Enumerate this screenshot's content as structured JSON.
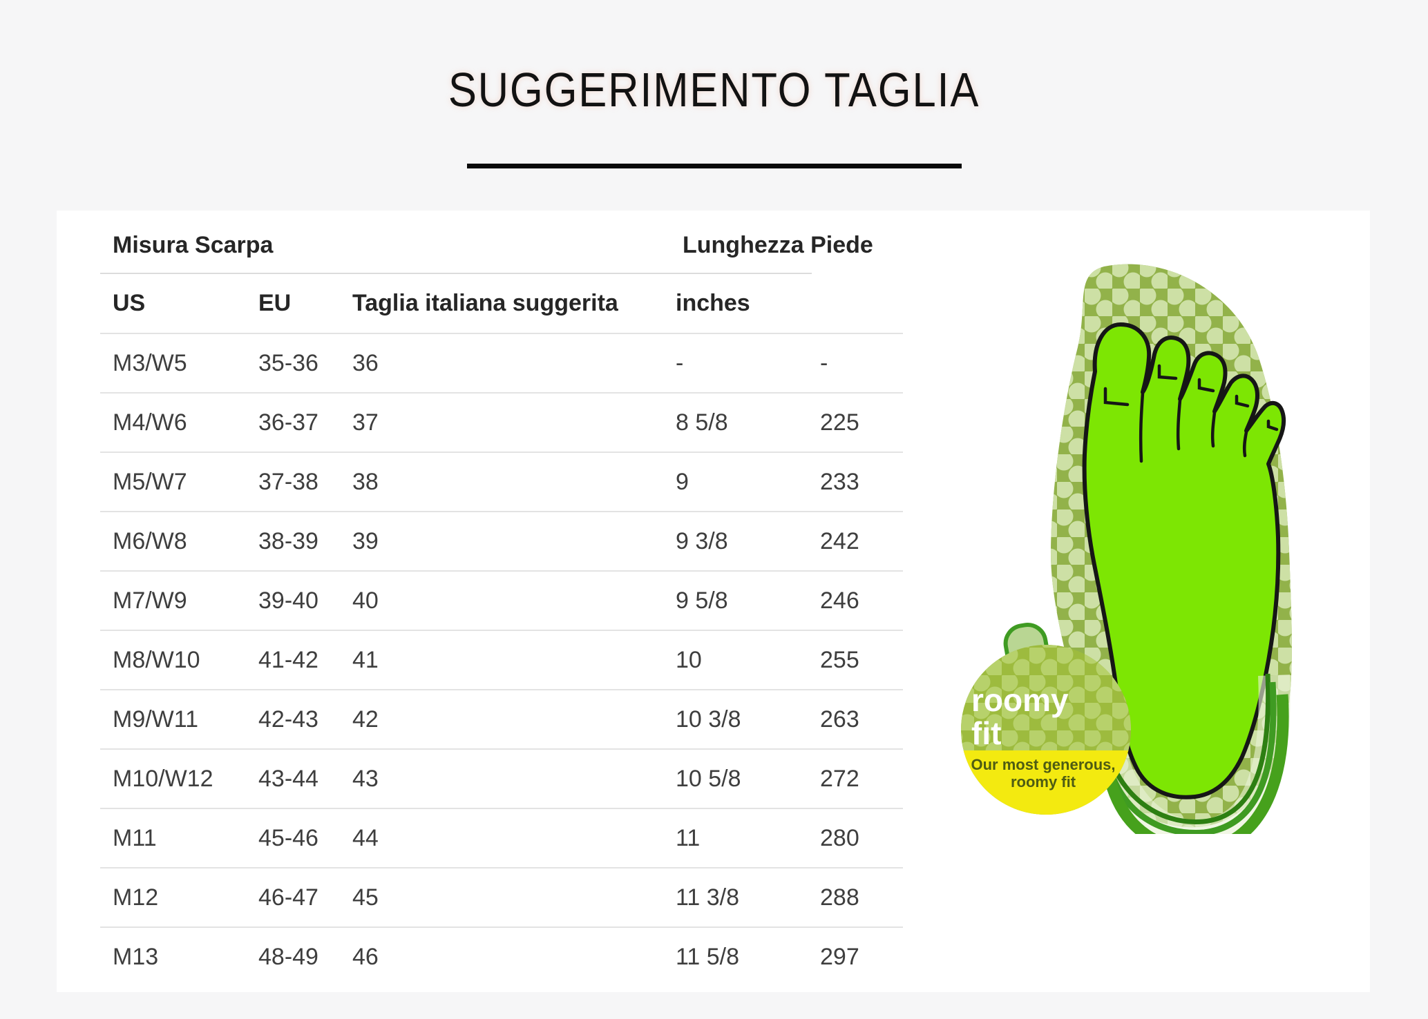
{
  "title": "SUGGERIMENTO TAGLIA",
  "table": {
    "group_headers": [
      "Misura Scarpa",
      "Lunghezza Piede"
    ],
    "columns": [
      "US",
      "EU",
      "Taglia italiana suggerita",
      "inches",
      ""
    ],
    "rows": [
      [
        "M3/W5",
        "35-36",
        "36",
        "-",
        "-"
      ],
      [
        "M4/W6",
        "36-37",
        "37",
        "8 5/8",
        "225"
      ],
      [
        "M5/W7",
        "37-38",
        "38",
        "9",
        "233"
      ],
      [
        "M6/W8",
        "38-39",
        "39",
        "9 3/8",
        "242"
      ],
      [
        "M7/W9",
        "39-40",
        "40",
        "9 5/8",
        "246"
      ],
      [
        "M8/W10",
        "41-42",
        "41",
        "10",
        "255"
      ],
      [
        "M9/W11",
        "42-43",
        "42",
        "10 3/8",
        "263"
      ],
      [
        "M10/W12",
        "43-44",
        "43",
        "10 5/8",
        "272"
      ],
      [
        "M11",
        "45-46",
        "44",
        "11",
        "280"
      ],
      [
        "M12",
        "46-47",
        "45",
        "11 3/8",
        "288"
      ],
      [
        "M13",
        "48-49",
        "46",
        "11 5/8",
        "297"
      ]
    ]
  },
  "badge": {
    "line1": "roomy",
    "line2": "fit",
    "sub1": "Our most generous,",
    "sub2": "roomy fit"
  },
  "colors": {
    "page_background": "#f6f6f7",
    "panel_background": "#ffffff",
    "foot_green": "#7de603",
    "sole_green": "#92b24a",
    "sole_dot": "#cde0a5",
    "strap_green": "#3f9b22",
    "badge_green": "#9dbb3e",
    "badge_yellow": "#f3ea10",
    "badge_subtext": "#4e5c13"
  }
}
